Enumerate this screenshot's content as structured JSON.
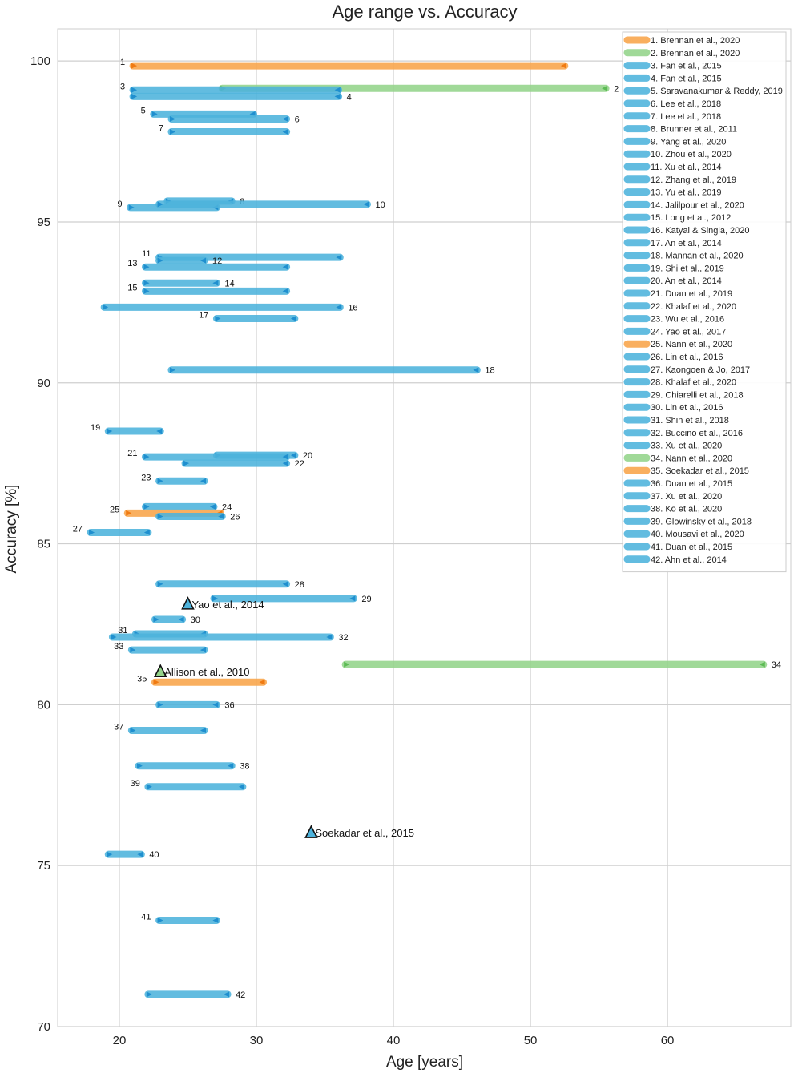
{
  "chart_data": {
    "type": "range",
    "title": "Age range vs. Accuracy",
    "xlabel": "Age [years]",
    "ylabel": "Accuracy [%]",
    "xlim": [
      15.5,
      69
    ],
    "ylim": [
      70,
      101
    ],
    "xticks": [
      20,
      30,
      40,
      50,
      60
    ],
    "yticks": [
      70,
      75,
      80,
      85,
      90,
      95,
      100
    ],
    "grid": true,
    "legend_position": "top-right",
    "colors": {
      "blue": "#4db3dc",
      "orange": "#f9a54a",
      "green": "#94d48a",
      "arrow_blue": "#1f8fcf",
      "arrow_orange": "#f07a12",
      "arrow_green": "#5dbb55"
    },
    "series": [
      {
        "id": 1,
        "label": "1. Brennan et al., 2020",
        "color": "orange",
        "min_age": 21,
        "max_age": 52.5,
        "accuracy": 99.85
      },
      {
        "id": 2,
        "label": "2. Brennan et al., 2020",
        "color": "green",
        "min_age": 27.5,
        "max_age": 55.5,
        "accuracy": 99.15
      },
      {
        "id": 3,
        "label": "3. Fan et al., 2015",
        "color": "blue",
        "min_age": 21,
        "max_age": 36,
        "accuracy": 99.1
      },
      {
        "id": 4,
        "label": "4. Fan et al., 2015",
        "color": "blue",
        "min_age": 21,
        "max_age": 36,
        "accuracy": 98.9
      },
      {
        "id": 5,
        "label": "5. Saravanakumar & Reddy, 2019",
        "color": "blue",
        "min_age": 22.5,
        "max_age": 29.8,
        "accuracy": 98.35
      },
      {
        "id": 6,
        "label": "6. Lee et al., 2018",
        "color": "blue",
        "min_age": 23.8,
        "max_age": 32.2,
        "accuracy": 98.2
      },
      {
        "id": 7,
        "label": "7. Lee et al., 2018",
        "color": "blue",
        "min_age": 23.8,
        "max_age": 32.2,
        "accuracy": 97.8
      },
      {
        "id": 8,
        "label": "8. Brunner et al., 2011",
        "color": "blue",
        "min_age": 23.5,
        "max_age": 28.2,
        "accuracy": 95.65
      },
      {
        "id": 9,
        "label": "9. Yang et al., 2020",
        "color": "blue",
        "min_age": 20.8,
        "max_age": 27.1,
        "accuracy": 95.45
      },
      {
        "id": 10,
        "label": "10. Zhou et al., 2020",
        "color": "blue",
        "min_age": 22.9,
        "max_age": 38.1,
        "accuracy": 95.55
      },
      {
        "id": 11,
        "label": "11. Xu et al., 2014",
        "color": "blue",
        "min_age": 22.9,
        "max_age": 36.1,
        "accuracy": 93.9
      },
      {
        "id": 12,
        "label": "12. Zhang et al., 2019",
        "color": "blue",
        "min_age": 22.9,
        "max_age": 26.2,
        "accuracy": 93.8
      },
      {
        "id": 13,
        "label": "13. Yu et al., 2019",
        "color": "blue",
        "min_age": 21.9,
        "max_age": 32.2,
        "accuracy": 93.6
      },
      {
        "id": 14,
        "label": "14. Jalilpour et al., 2020",
        "color": "blue",
        "min_age": 21.9,
        "max_age": 27.1,
        "accuracy": 93.1
      },
      {
        "id": 15,
        "label": "15. Long et al., 2012",
        "color": "blue",
        "min_age": 21.9,
        "max_age": 32.2,
        "accuracy": 92.85
      },
      {
        "id": 16,
        "label": "16. Katyal & Singla, 2020",
        "color": "blue",
        "min_age": 18.9,
        "max_age": 36.1,
        "accuracy": 92.35
      },
      {
        "id": 17,
        "label": "17. An et al., 2014",
        "color": "blue",
        "min_age": 27.1,
        "max_age": 32.8,
        "accuracy": 92.0
      },
      {
        "id": 18,
        "label": "18. Mannan et al., 2020",
        "color": "blue",
        "min_age": 23.8,
        "max_age": 46.1,
        "accuracy": 90.4
      },
      {
        "id": 19,
        "label": "19. Shi et al., 2019",
        "color": "blue",
        "min_age": 19.2,
        "max_age": 23.0,
        "accuracy": 88.5
      },
      {
        "id": 20,
        "label": "20. An et al., 2014",
        "color": "blue",
        "min_age": 27.1,
        "max_age": 32.8,
        "accuracy": 87.75
      },
      {
        "id": 21,
        "label": "21. Duan et al., 2019",
        "color": "blue",
        "min_age": 21.9,
        "max_age": 32.2,
        "accuracy": 87.7
      },
      {
        "id": 22,
        "label": "22. Khalaf et al., 2020",
        "color": "blue",
        "min_age": 24.8,
        "max_age": 32.2,
        "accuracy": 87.5
      },
      {
        "id": 23,
        "label": "23. Wu et al., 2016",
        "color": "blue",
        "min_age": 22.9,
        "max_age": 26.2,
        "accuracy": 86.95
      },
      {
        "id": 24,
        "label": "24. Yao et al., 2017",
        "color": "blue",
        "min_age": 21.9,
        "max_age": 26.9,
        "accuracy": 86.15
      },
      {
        "id": 25,
        "label": "25. Nann et al., 2020",
        "color": "orange",
        "min_age": 20.6,
        "max_age": 27.4,
        "accuracy": 85.95
      },
      {
        "id": 26,
        "label": "26. Lin et al., 2016",
        "color": "blue",
        "min_age": 22.9,
        "max_age": 27.5,
        "accuracy": 85.85
      },
      {
        "id": 27,
        "label": "27. Kaongoen & Jo, 2017",
        "color": "blue",
        "min_age": 17.9,
        "max_age": 22.1,
        "accuracy": 85.35
      },
      {
        "id": 28,
        "label": "28. Khalaf et al., 2020",
        "color": "blue",
        "min_age": 22.9,
        "max_age": 32.2,
        "accuracy": 83.75
      },
      {
        "id": 29,
        "label": "29. Chiarelli et al., 2018",
        "color": "blue",
        "min_age": 26.9,
        "max_age": 37.1,
        "accuracy": 83.3
      },
      {
        "id": 30,
        "label": "30. Lin et al., 2016",
        "color": "blue",
        "min_age": 22.6,
        "max_age": 24.6,
        "accuracy": 82.65
      },
      {
        "id": 31,
        "label": "31. Shin et al., 2018",
        "color": "blue",
        "min_age": 21.2,
        "max_age": 26.2,
        "accuracy": 82.2
      },
      {
        "id": 32,
        "label": "32. Buccino et al., 2016",
        "color": "blue",
        "min_age": 19.5,
        "max_age": 35.4,
        "accuracy": 82.1
      },
      {
        "id": 33,
        "label": "33. Xu et al., 2020",
        "color": "blue",
        "min_age": 20.9,
        "max_age": 26.2,
        "accuracy": 81.7
      },
      {
        "id": 34,
        "label": "34. Nann et al., 2020",
        "color": "green",
        "min_age": 36.5,
        "max_age": 67.0,
        "accuracy": 81.25
      },
      {
        "id": 35,
        "label": "35. Soekadar et al., 2015",
        "color": "orange",
        "min_age": 22.6,
        "max_age": 30.5,
        "accuracy": 80.7
      },
      {
        "id": 36,
        "label": "36. Duan et al., 2015",
        "color": "blue",
        "min_age": 22.9,
        "max_age": 27.1,
        "accuracy": 80.0
      },
      {
        "id": 37,
        "label": "37. Xu et al., 2020",
        "color": "blue",
        "min_age": 20.9,
        "max_age": 26.2,
        "accuracy": 79.2
      },
      {
        "id": 38,
        "label": "38. Ko et al., 2020",
        "color": "blue",
        "min_age": 21.4,
        "max_age": 28.2,
        "accuracy": 78.1
      },
      {
        "id": 39,
        "label": "39. Glowinsky et al., 2018",
        "color": "blue",
        "min_age": 22.1,
        "max_age": 29.0,
        "accuracy": 77.45
      },
      {
        "id": 40,
        "label": "40. Mousavi et al., 2020",
        "color": "blue",
        "min_age": 19.2,
        "max_age": 21.6,
        "accuracy": 75.35
      },
      {
        "id": 41,
        "label": "41. Duan et al., 2015",
        "color": "blue",
        "min_age": 22.9,
        "max_age": 27.1,
        "accuracy": 73.3
      },
      {
        "id": 42,
        "label": "42. Ahn et al., 2014",
        "color": "blue",
        "min_age": 22.1,
        "max_age": 27.9,
        "accuracy": 71.0
      }
    ],
    "markers": [
      {
        "label": "Yao et al., 2014",
        "age": 25,
        "accuracy": 83.1,
        "color": "blue"
      },
      {
        "label": "Allison et al., 2010",
        "age": 23,
        "accuracy": 81.0,
        "color": "green"
      },
      {
        "label": "Soekadar et al., 2015",
        "age": 34,
        "accuracy": 76.0,
        "color": "blue"
      }
    ]
  }
}
